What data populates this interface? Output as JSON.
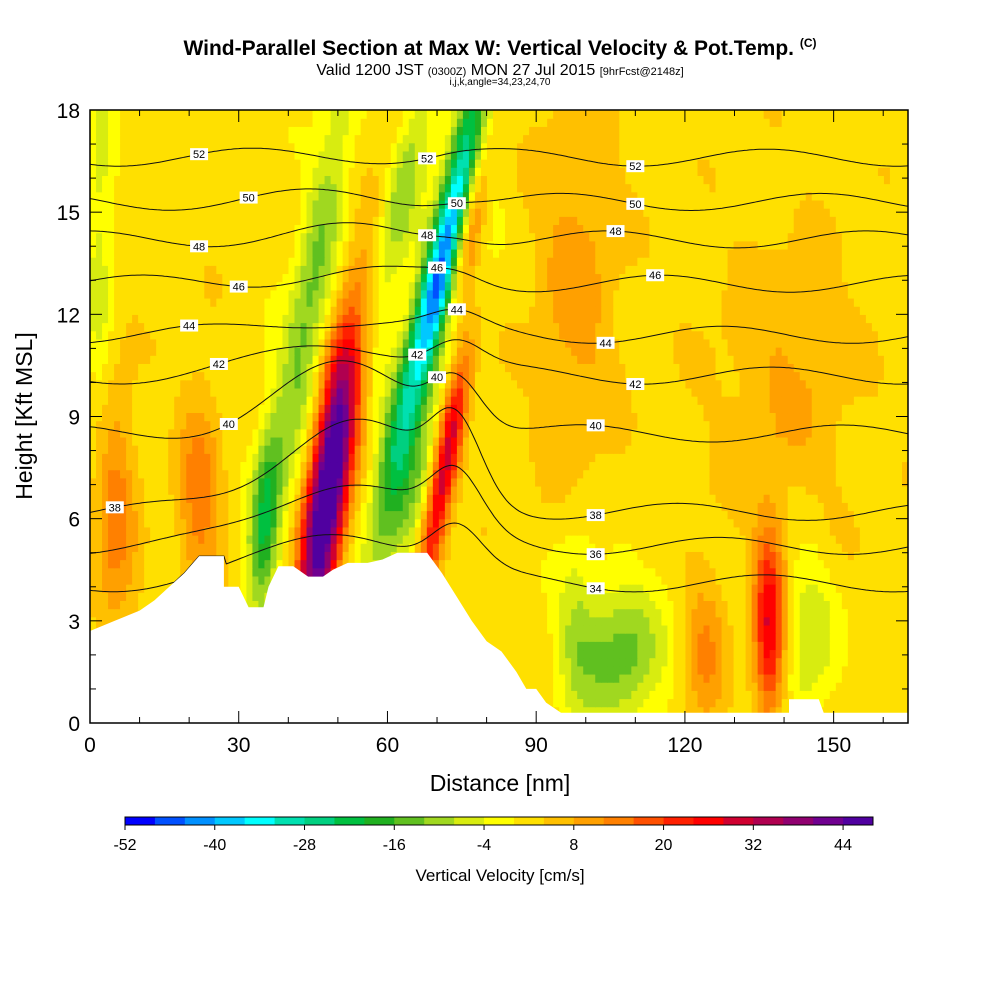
{
  "chart_data": {
    "type": "heatmap",
    "title": "Wind-Parallel Section at Max W: Vertical Velocity & Pot.Temp.",
    "title_mark": "(C)",
    "subtitle_prefix": "Valid 1200 JST",
    "subtitle_small": "(0300Z)",
    "subtitle_main": "MON 27 Jul 2015",
    "subtitle_fcst": "[9hrFcst@2148z]",
    "subtitle2": "i,j,k,angle=34,23,24,70",
    "xlabel": "Distance [nm]",
    "ylabel": "Height [Kft MSL]",
    "xlim": [
      0,
      165
    ],
    "ylim": [
      0,
      18
    ],
    "x_ticks": [
      0,
      30,
      60,
      90,
      120,
      150
    ],
    "y_ticks": [
      0,
      3,
      6,
      9,
      12,
      15,
      18
    ],
    "colorbar": {
      "title": "Vertical Velocity [cm/s]",
      "min": -52,
      "max": 48,
      "step": 4,
      "tick_labels": [
        -52,
        -40,
        -28,
        -16,
        -4,
        8,
        20,
        32,
        44
      ],
      "colors": [
        "#0000ff",
        "#0050ff",
        "#0090ff",
        "#00c8ff",
        "#00ffff",
        "#00e0b0",
        "#00d080",
        "#00c040",
        "#20b020",
        "#60c020",
        "#a0d820",
        "#d8ec10",
        "#ffff00",
        "#ffe000",
        "#ffc000",
        "#ffa000",
        "#ff8000",
        "#ff5000",
        "#ff2000",
        "#ff0000",
        "#d00030",
        "#b00050",
        "#900070",
        "#700090",
        "#5000a0"
      ]
    },
    "velocity_features": [
      {
        "x": 48,
        "z": 7.0,
        "w": 44,
        "sx": 2.8,
        "sz": 3.2,
        "tilt": 0.9
      },
      {
        "x": 53,
        "z": 10.0,
        "w": 18,
        "sx": 3.0,
        "sz": 5.0,
        "tilt": 1.3
      },
      {
        "x": 72,
        "z": 8.0,
        "w": 36,
        "sx": 1.9,
        "sz": 3.0,
        "tilt": 1.2
      },
      {
        "x": 76,
        "z": 14.0,
        "w": 30,
        "sx": 2.3,
        "sz": 3.5,
        "tilt": 1.0
      },
      {
        "x": 72,
        "z": 14.0,
        "w": -50,
        "sx": 2.6,
        "sz": 4.0,
        "tilt": 1.6
      },
      {
        "x": 74,
        "z": 11.0,
        "w": -28,
        "sx": 2.5,
        "sz": 3.0,
        "tilt": 1.3
      },
      {
        "x": 60,
        "z": 14.0,
        "w": -20,
        "sx": 3.0,
        "sz": 4.0,
        "tilt": 1.5
      },
      {
        "x": 44,
        "z": 12.0,
        "w": -15,
        "sx": 3.0,
        "sz": 5.0,
        "tilt": 1.1
      },
      {
        "x": 62,
        "z": 7.0,
        "w": -14,
        "sx": 3.5,
        "sz": 2.0,
        "tilt": 0.4
      },
      {
        "x": 35,
        "z": 6.0,
        "w": -18,
        "sx": 2.0,
        "sz": 2.0,
        "tilt": 0.5
      },
      {
        "x": 107,
        "z": 2.0,
        "w": -16,
        "sx": 6.0,
        "sz": 1.5,
        "tilt": 0
      },
      {
        "x": 98,
        "z": 3.0,
        "w": -8,
        "sx": 3.0,
        "sz": 2.0,
        "tilt": 0
      },
      {
        "x": 137,
        "z": 2.8,
        "w": 26,
        "sx": 2.2,
        "sz": 2.0,
        "tilt": 0
      },
      {
        "x": 124,
        "z": 2.0,
        "w": 10,
        "sx": 3.0,
        "sz": 1.8,
        "tilt": 0
      },
      {
        "x": 145,
        "z": 2.5,
        "w": -10,
        "sx": 3.5,
        "sz": 1.8,
        "tilt": 0
      },
      {
        "x": 5,
        "z": 6.0,
        "w": 12,
        "sx": 3.0,
        "sz": 3.0,
        "tilt": 0
      },
      {
        "x": 22,
        "z": 6.5,
        "w": 12,
        "sx": 3.0,
        "sz": 2.5,
        "tilt": 0
      },
      {
        "x": 2,
        "z": 14.0,
        "w": -8,
        "sx": 2.0,
        "sz": 4.0,
        "tilt": 0
      },
      {
        "x": 98,
        "z": 13.0,
        "w": 8,
        "sx": 6.0,
        "sz": 4.0,
        "tilt": 0
      },
      {
        "x": 140,
        "z": 10.0,
        "w": 6,
        "sx": 10.0,
        "sz": 3.0,
        "tilt": 0
      }
    ],
    "terrain": [
      [
        0,
        2.7
      ],
      [
        5,
        3.0
      ],
      [
        10,
        3.3
      ],
      [
        13,
        3.6
      ],
      [
        16,
        4.0
      ],
      [
        19,
        4.4
      ],
      [
        22,
        4.9
      ],
      [
        27,
        4.9
      ],
      [
        27,
        4.0
      ],
      [
        30,
        4.0
      ],
      [
        32,
        3.4
      ],
      [
        35,
        3.4
      ],
      [
        36,
        4.0
      ],
      [
        38,
        4.6
      ],
      [
        41,
        4.6
      ],
      [
        44,
        4.3
      ],
      [
        47,
        4.3
      ],
      [
        49,
        4.5
      ],
      [
        52,
        4.7
      ],
      [
        56,
        4.7
      ],
      [
        59,
        4.8
      ],
      [
        62,
        5.0
      ],
      [
        68,
        5.0
      ],
      [
        71,
        4.4
      ],
      [
        74,
        3.7
      ],
      [
        77,
        3.0
      ],
      [
        80,
        2.4
      ],
      [
        83,
        2.1
      ],
      [
        86,
        1.5
      ],
      [
        88,
        1.0
      ],
      [
        90,
        1.0
      ],
      [
        92,
        0.6
      ],
      [
        95,
        0.3
      ],
      [
        141,
        0.3
      ],
      [
        141,
        0.7
      ],
      [
        147,
        0.7
      ],
      [
        148,
        0.3
      ],
      [
        165,
        0.3
      ]
    ],
    "theta_contours": [
      {
        "label": "34",
        "base": 4.1,
        "plain": true,
        "lx": [
          102
        ],
        "hump": 2.0
      },
      {
        "label": "36",
        "base": 5.2,
        "lx": [
          102
        ],
        "hump": 2.5
      },
      {
        "label": "38",
        "base": 6.2,
        "lx": [
          5,
          102
        ],
        "hump": 3.4
      },
      {
        "label": "40",
        "base": 8.5,
        "lx": [
          28,
          70,
          102
        ],
        "hump": 2.4
      },
      {
        "label": "42",
        "base": 10.2,
        "lx": [
          26,
          66,
          110
        ],
        "hump": 1.2
      },
      {
        "label": "44",
        "base": 11.4,
        "lx": [
          20,
          74,
          104
        ],
        "hump": 0.6
      },
      {
        "label": "46",
        "base": 12.9,
        "lx": [
          30,
          70,
          114
        ],
        "hump": 0.4
      },
      {
        "label": "48",
        "base": 14.2,
        "lx": [
          22,
          68,
          106
        ],
        "hump": 0.3
      },
      {
        "label": "50",
        "base": 15.3,
        "lx": [
          32,
          74,
          110
        ],
        "hump": 0.2
      },
      {
        "label": "52",
        "base": 16.6,
        "lx": [
          22,
          68,
          110
        ],
        "hump": 0.1
      }
    ]
  }
}
